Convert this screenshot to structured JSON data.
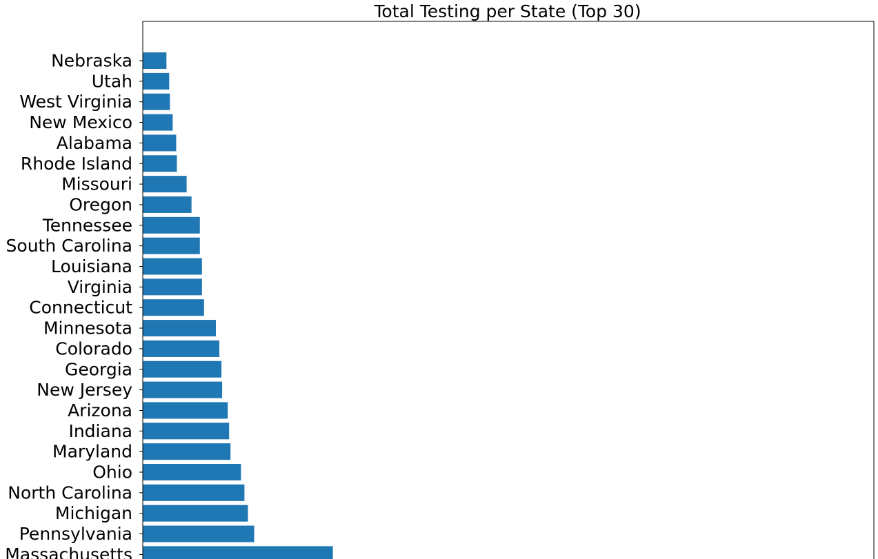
{
  "chart_data": {
    "type": "bar",
    "orientation": "horizontal",
    "title": "Total Testing per State (Top 30)",
    "xlabel": "",
    "ylabel": "",
    "color": "#1f77b4",
    "grid": false,
    "categories": [
      "Nebraska",
      "Utah",
      "West Virginia",
      "New Mexico",
      "Alabama",
      "Rhode Island",
      "Missouri",
      "Oregon",
      "Tennessee",
      "South Carolina",
      "Louisiana",
      "Virginia",
      "Connecticut",
      "Minnesota",
      "Colorado",
      "Georgia",
      "New Jersey",
      "Arizona",
      "Indiana",
      "Maryland",
      "Ohio",
      "North Carolina",
      "Michigan",
      "Pennsylvania",
      "Massachusetts"
    ],
    "values": [
      3.4,
      3.8,
      3.9,
      4.3,
      4.8,
      4.9,
      6.3,
      7.0,
      8.2,
      8.2,
      8.5,
      8.5,
      8.8,
      10.5,
      11.0,
      11.3,
      11.4,
      12.2,
      12.4,
      12.6,
      14.1,
      14.6,
      15.1,
      16.0,
      27.3
    ],
    "xlim": [
      0,
      105
    ]
  }
}
